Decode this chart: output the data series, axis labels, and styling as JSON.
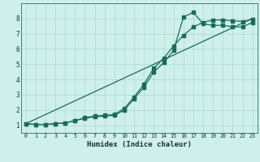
{
  "background_color": "#cff0ea",
  "grid_color": "#a8d8d0",
  "line_color": "#1a6b5a",
  "xlabel": "Humidex (Indice chaleur)",
  "xlim": [
    -0.5,
    23.5
  ],
  "ylim": [
    0.5,
    9.0
  ],
  "xticks": [
    0,
    1,
    2,
    3,
    4,
    5,
    6,
    7,
    8,
    9,
    10,
    11,
    12,
    13,
    14,
    15,
    16,
    17,
    18,
    19,
    20,
    21,
    22,
    23
  ],
  "yticks": [
    1,
    2,
    3,
    4,
    5,
    6,
    7,
    8
  ],
  "series1_x": [
    0,
    1,
    2,
    3,
    4,
    5,
    6,
    7,
    8,
    9,
    10,
    11,
    12,
    13,
    14,
    15,
    16,
    17,
    18,
    19,
    20,
    21,
    22,
    23
  ],
  "series1_y": [
    1.1,
    1.05,
    1.05,
    1.1,
    1.15,
    1.3,
    1.5,
    1.6,
    1.65,
    1.7,
    2.1,
    2.85,
    3.7,
    4.75,
    5.4,
    6.2,
    6.9,
    7.45,
    7.75,
    7.9,
    7.9,
    7.85,
    7.8,
    7.95
  ],
  "series2_x": [
    0,
    1,
    2,
    3,
    4,
    5,
    6,
    7,
    8,
    9,
    10,
    11,
    12,
    13,
    14,
    15,
    16,
    17,
    18,
    19,
    20,
    21,
    22,
    23
  ],
  "series2_y": [
    1.1,
    1.05,
    1.05,
    1.1,
    1.15,
    1.3,
    1.45,
    1.55,
    1.6,
    1.65,
    2.0,
    2.75,
    3.5,
    4.5,
    5.1,
    5.9,
    8.1,
    8.4,
    7.65,
    7.55,
    7.55,
    7.45,
    7.45,
    7.75
  ],
  "series3_x": [
    0,
    23
  ],
  "series3_y": [
    1.1,
    8.0
  ]
}
